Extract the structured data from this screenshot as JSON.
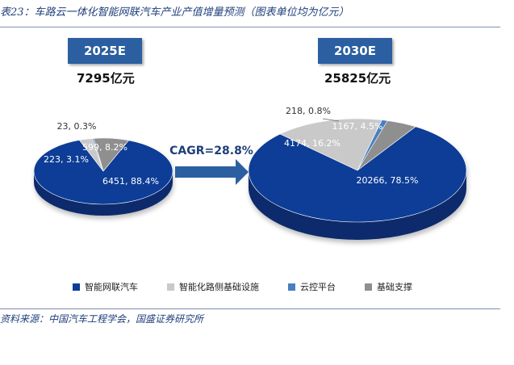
{
  "header": {
    "title": "表23：车路云一体化智能网联汽车产业产值增量预测（图表单位均为亿元）"
  },
  "footer": {
    "source": "资料来源：中国汽车工程学会，国盛证券研究所"
  },
  "colors": {
    "智能网联汽车": "#0d3d96",
    "智能化路侧基础设施": "#c9c9c9",
    "云控平台": "#4a7fc1",
    "基础支撑": "#8f8f8f",
    "year_box": "#2b5fa1",
    "arrow": "#2b5fa1"
  },
  "legend": [
    "智能网联汽车",
    "智能化路侧基础设施",
    "云控平台",
    "基础支撑"
  ],
  "cagr": "CAGR=28.8%",
  "chart_data": [
    {
      "type": "pie",
      "title": "2025E",
      "total": "7295亿元",
      "slices": [
        {
          "name": "智能网联汽车",
          "value": 6451,
          "pct": "88.4%",
          "label": "6451, 88.4%"
        },
        {
          "name": "智能化路侧基础设施",
          "value": 223,
          "pct": "3.1%",
          "label": "223, 3.1%"
        },
        {
          "name": "云控平台",
          "value": 23,
          "pct": "0.3%",
          "label": "23, 0.3%"
        },
        {
          "name": "基础支撑",
          "value": 599,
          "pct": "8.2%",
          "label": "599, 8.2%"
        }
      ]
    },
    {
      "type": "pie",
      "title": "2030E",
      "total": "25825亿元",
      "slices": [
        {
          "name": "智能网联汽车",
          "value": 20266,
          "pct": "78.5%",
          "label": "20266, 78.5%"
        },
        {
          "name": "智能化路侧基础设施",
          "value": 4174,
          "pct": "16.2%",
          "label": "4174, 16.2%"
        },
        {
          "name": "云控平台",
          "value": 218,
          "pct": "0.8%",
          "label": "218, 0.8%"
        },
        {
          "name": "基础支撑",
          "value": 1167,
          "pct": "4.5%",
          "label": "1167, 4.5%"
        }
      ]
    }
  ]
}
